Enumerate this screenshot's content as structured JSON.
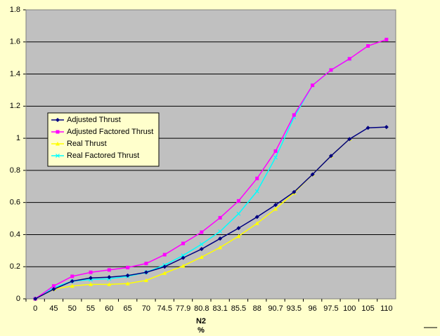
{
  "chart_data": {
    "type": "line",
    "x_label": "N2",
    "x_unit": "%",
    "categories": [
      "0",
      "45",
      "50",
      "55",
      "60",
      "65",
      "70",
      "74.5",
      "77.9",
      "80.8",
      "83.1",
      "85.5",
      "88",
      "90.7",
      "93.5",
      "96",
      "97.5",
      "100",
      "105",
      "110"
    ],
    "ylim": [
      0,
      1.8
    ],
    "yticks": [
      0,
      0.2,
      0.4,
      0.6,
      0.8,
      1,
      1.2,
      1.4,
      1.6,
      1.8
    ],
    "grid": true,
    "legend": "left",
    "series": [
      {
        "name": "Adjusted Thrust",
        "color": "#000080",
        "marker": "diamond",
        "values": [
          0,
          0.06,
          0.11,
          0.13,
          0.135,
          0.145,
          0.165,
          0.2,
          0.255,
          0.31,
          0.375,
          0.44,
          0.51,
          0.585,
          0.665,
          0.775,
          0.89,
          0.995,
          1.065,
          1.07
        ]
      },
      {
        "name": "Adjusted Factored Thrust",
        "color": "#ff00ff",
        "marker": "square",
        "values": [
          0,
          0.08,
          0.14,
          0.165,
          0.18,
          0.195,
          0.22,
          0.275,
          0.345,
          0.415,
          0.505,
          0.61,
          0.75,
          0.92,
          1.145,
          1.33,
          1.425,
          1.495,
          1.575,
          1.615
        ]
      },
      {
        "name": "Real Thrust",
        "color": "#ffff00",
        "marker": "triangle",
        "values": [
          0,
          0.06,
          0.08,
          0.09,
          0.09,
          0.095,
          0.115,
          0.16,
          0.205,
          0.26,
          0.32,
          0.39,
          0.47,
          0.56,
          0.66,
          0.775,
          0.89,
          0.995,
          null,
          null
        ]
      },
      {
        "name": "Real Factored Thrust",
        "color": "#00ffff",
        "marker": "x",
        "values": [
          0,
          0.07,
          0.11,
          0.12,
          0.125,
          0.14,
          0.165,
          0.21,
          0.27,
          0.34,
          0.42,
          0.53,
          0.67,
          0.88,
          1.13,
          1.33,
          1.425,
          1.495,
          null,
          null
        ]
      }
    ]
  }
}
